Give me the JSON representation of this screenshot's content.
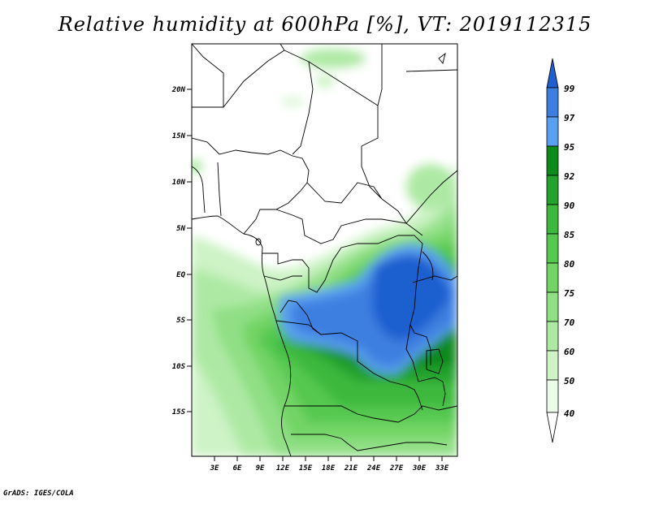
{
  "title": "Relative humidity at 600hPa [%], VT: 2019112315",
  "credit": "GrADS: IGES/COLA",
  "map": {
    "lat_labels": [
      "20N",
      "15N",
      "10N",
      "5N",
      "EQ",
      "5S",
      "10S",
      "15S"
    ],
    "lon_labels": [
      "3E",
      "6E",
      "9E",
      "12E",
      "15E",
      "18E",
      "21E",
      "24E",
      "27E",
      "30E",
      "33E"
    ]
  },
  "colorbar": {
    "levels": [
      "99",
      "97",
      "95",
      "92",
      "90",
      "85",
      "80",
      "75",
      "70",
      "60",
      "50",
      "40"
    ],
    "colors": [
      "#1f5ecf",
      "#3c7fe0",
      "#5aa0f0",
      "#0c8a1c",
      "#23a22e",
      "#3cb83c",
      "#55c84f",
      "#72d465",
      "#90df85",
      "#aee9a4",
      "#cdf3c6",
      "#eafbe6",
      "#ffffff"
    ]
  }
}
